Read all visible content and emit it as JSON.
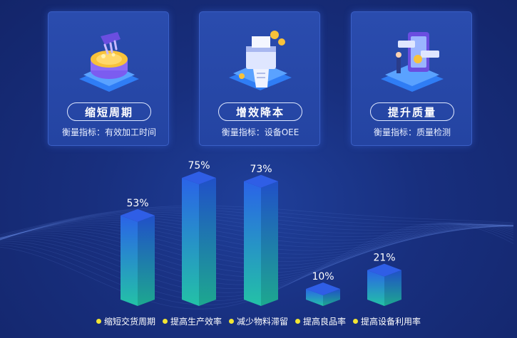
{
  "cards": [
    {
      "title": "缩短周期",
      "metric": "衡量指标：有效加工时间",
      "icon": "coin-hand-icon"
    },
    {
      "title": "增效降本",
      "metric": "衡量指标：设备OEE",
      "icon": "printer-receipt-icon"
    },
    {
      "title": "提升质量",
      "metric": "衡量指标：质量检测",
      "icon": "phone-quality-icon"
    }
  ],
  "chart_data": {
    "type": "bar",
    "categories": [
      "缩短交货周期",
      "提高生产效率",
      "减少物料滞留",
      "提高良品率",
      "提高设备利用率"
    ],
    "values": [
      53,
      75,
      73,
      10,
      21
    ],
    "labels": [
      "53%",
      "75%",
      "73%",
      "10%",
      "21%"
    ],
    "ylim": [
      0,
      100
    ],
    "legend_position": "bottom",
    "legend_dot_color": "#f2e533"
  }
}
